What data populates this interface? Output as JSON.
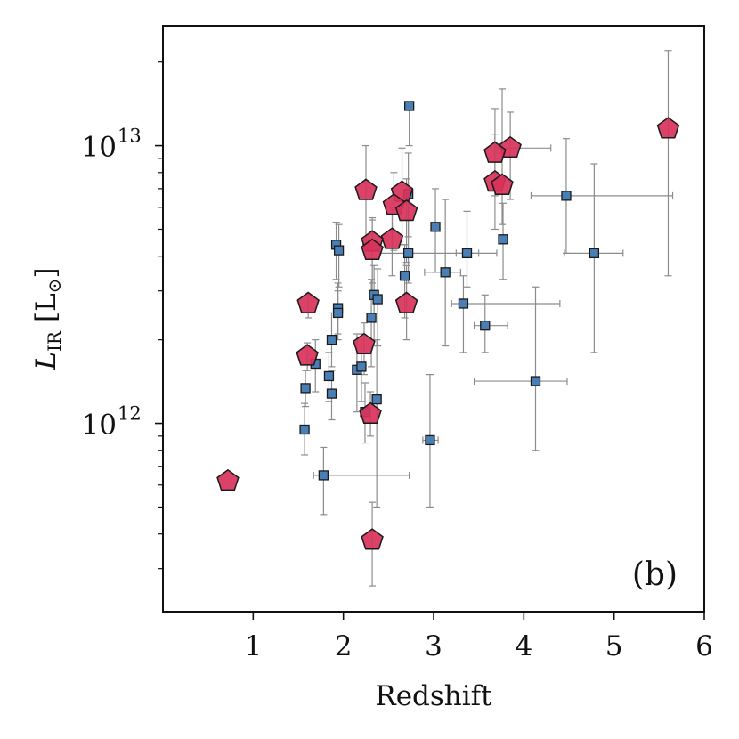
{
  "chart_data": {
    "type": "scatter",
    "title": "",
    "xlabel": "Redshift",
    "ylabel": {
      "main": "L",
      "sub": "IR",
      "unit": "[L",
      "unit_sub": "⊙",
      "unit_close": "]"
    },
    "xlim": [
      0,
      6
    ],
    "ylim": [
      210000000000.0,
      27000000000000.0
    ],
    "yscale": "log",
    "x_ticks": [
      1,
      2,
      3,
      4,
      5,
      6
    ],
    "x_tick_labels": [
      "1",
      "2",
      "3",
      "4",
      "5",
      "6"
    ],
    "y_major_ticks": [
      {
        "value": 1000000000000.0,
        "base": "10",
        "exp": "12"
      },
      {
        "value": 10000000000000.0,
        "base": "10",
        "exp": "13"
      }
    ],
    "y_minor_ticks": [
      300000000000.0,
      400000000000.0,
      500000000000.0,
      600000000000.0,
      700000000000.0,
      800000000000.0,
      900000000000.0,
      2000000000000.0,
      3000000000000.0,
      4000000000000.0,
      5000000000000.0,
      6000000000000.0,
      7000000000000.0,
      8000000000000.0,
      9000000000000.0,
      20000000000000.0
    ],
    "annotation": "(b)",
    "annotation_position": "bottom-right",
    "grid": false,
    "colors": {
      "square": "#4a7fb5",
      "pentagon": "#d8325a",
      "errorbar": "#8c8c8c",
      "edge": "#1a1a1a"
    },
    "series": [
      {
        "name": "squares",
        "marker": "square",
        "points": [
          {
            "x": 2.73,
            "y": 13900000000000.0,
            "ylo": 10000000000000.0,
            "yhi": 13900000000000.0
          },
          {
            "x": 2.72,
            "y": 6700000000000.0,
            "ylo": 4700000000000.0,
            "yhi": 9400000000000.0
          },
          {
            "x": 3.02,
            "y": 5100000000000.0,
            "ylo": 3500000000000.0,
            "yhi": 7000000000000.0
          },
          {
            "x": 1.92,
            "y": 4400000000000.0,
            "ylo": 3300000000000.0,
            "yhi": 5300000000000.0
          },
          {
            "x": 1.95,
            "y": 4200000000000.0,
            "ylo": 3100000000000.0,
            "yhi": 5200000000000.0
          },
          {
            "x": 2.72,
            "y": 4100000000000.0,
            "ylo": 3200000000000.0,
            "yhi": 6200000000000.0,
            "xlo": 2.4,
            "xhi": 3.7
          },
          {
            "x": 3.37,
            "y": 4100000000000.0,
            "ylo": 3100000000000.0,
            "yhi": 5800000000000.0,
            "xlo": 3.25,
            "xhi": 3.5
          },
          {
            "x": 3.77,
            "y": 4600000000000.0,
            "ylo": 3300000000000.0,
            "yhi": 6200000000000.0
          },
          {
            "x": 4.47,
            "y": 6600000000000.0,
            "ylo": 4100000000000.0,
            "yhi": 10600000000000.0,
            "xlo": 4.08,
            "xhi": 5.65
          },
          {
            "x": 4.78,
            "y": 4100000000000.0,
            "ylo": 1800000000000.0,
            "yhi": 8600000000000.0,
            "xlo": 4.45,
            "xhi": 5.1
          },
          {
            "x": 3.13,
            "y": 3500000000000.0,
            "ylo": 1900000000000.0,
            "yhi": 6400000000000.0,
            "xlo": 2.9,
            "xhi": 3.3
          },
          {
            "x": 2.68,
            "y": 3400000000000.0,
            "ylo": 2400000000000.0,
            "yhi": 4400000000000.0
          },
          {
            "x": 2.34,
            "y": 2900000000000.0,
            "ylo": 2000000000000.0,
            "yhi": 3700000000000.0
          },
          {
            "x": 2.38,
            "y": 2800000000000.0,
            "ylo": 1900000000000.0,
            "yhi": 3600000000000.0
          },
          {
            "x": 3.33,
            "y": 2700000000000.0,
            "ylo": 1800000000000.0,
            "yhi": 3400000000000.0,
            "xlo": 3.2,
            "xhi": 4.4
          },
          {
            "x": 1.94,
            "y": 2600000000000.0,
            "ylo": 2100000000000.0,
            "yhi": 3200000000000.0
          },
          {
            "x": 1.94,
            "y": 2500000000000.0,
            "ylo": 2000000000000.0,
            "yhi": 3000000000000.0
          },
          {
            "x": 2.31,
            "y": 2400000000000.0,
            "ylo": 1600000000000.0,
            "yhi": 3300000000000.0
          },
          {
            "x": 3.57,
            "y": 2250000000000.0,
            "ylo": 1800000000000.0,
            "yhi": 2900000000000.0,
            "xlo": 3.45,
            "xhi": 3.82
          },
          {
            "x": 1.87,
            "y": 2000000000000.0,
            "ylo": 1600000000000.0,
            "yhi": 2500000000000.0
          },
          {
            "x": 1.58,
            "y": 1340000000000.0,
            "ylo": 1150000000000.0,
            "yhi": 1550000000000.0
          },
          {
            "x": 1.69,
            "y": 1640000000000.0,
            "ylo": 1300000000000.0,
            "yhi": 2000000000000.0
          },
          {
            "x": 1.84,
            "y": 1480000000000.0,
            "ylo": 1200000000000.0,
            "yhi": 1800000000000.0
          },
          {
            "x": 2.15,
            "y": 1560000000000.0,
            "ylo": 1100000000000.0,
            "yhi": 2100000000000.0
          },
          {
            "x": 2.2,
            "y": 1600000000000.0,
            "ylo": 1200000000000.0,
            "yhi": 2100000000000.0
          },
          {
            "x": 1.87,
            "y": 1280000000000.0,
            "ylo": 1030000000000.0,
            "yhi": 1550000000000.0
          },
          {
            "x": 2.37,
            "y": 1220000000000.0,
            "ylo": 500000000000.0,
            "yhi": 2000000000000.0
          },
          {
            "x": 2.24,
            "y": 1100000000000.0,
            "ylo": 850000000000.0,
            "yhi": 1400000000000.0
          },
          {
            "x": 1.57,
            "y": 950000000000.0,
            "ylo": 770000000000.0,
            "yhi": 1180000000000.0
          },
          {
            "x": 2.96,
            "y": 870000000000.0,
            "ylo": 500000000000.0,
            "yhi": 1500000000000.0,
            "xlo": 2.88,
            "xhi": 3.05
          },
          {
            "x": 4.13,
            "y": 1420000000000.0,
            "ylo": 800000000000.0,
            "yhi": 3100000000000.0,
            "xlo": 3.45,
            "xhi": 4.48
          },
          {
            "x": 1.78,
            "y": 650000000000.0,
            "ylo": 470000000000.0,
            "yhi": 820000000000.0,
            "xlo": 1.67,
            "xhi": 2.73
          }
        ]
      },
      {
        "name": "pentagons",
        "marker": "pentagon",
        "points": [
          {
            "x": 5.6,
            "y": 11500000000000.0,
            "ylo": 3400000000000.0,
            "yhi": 22000000000000.0
          },
          {
            "x": 3.85,
            "y": 9800000000000.0,
            "ylo": 6400000000000.0,
            "yhi": 13200000000000.0,
            "xlo": 3.7,
            "xhi": 4.3
          },
          {
            "x": 3.68,
            "y": 9400000000000.0,
            "ylo": 6600000000000.0,
            "yhi": 13600000000000.0
          },
          {
            "x": 3.68,
            "y": 7400000000000.0,
            "ylo": 5000000000000.0,
            "yhi": 11000000000000.0
          },
          {
            "x": 3.76,
            "y": 7200000000000.0,
            "ylo": 5200000000000.0,
            "yhi": 16000000000000.0
          },
          {
            "x": 2.25,
            "y": 6900000000000.0,
            "ylo": 4400000000000.0,
            "yhi": 10000000000000.0
          },
          {
            "x": 2.65,
            "y": 6800000000000.0,
            "ylo": 4400000000000.0,
            "yhi": 9800000000000.0
          },
          {
            "x": 2.56,
            "y": 6100000000000.0,
            "ylo": 4200000000000.0,
            "yhi": 8000000000000.0
          },
          {
            "x": 2.7,
            "y": 5800000000000.0,
            "ylo": 3800000000000.0,
            "yhi": 7600000000000.0
          },
          {
            "x": 2.54,
            "y": 4600000000000.0,
            "ylo": 3400000000000.0,
            "yhi": 6000000000000.0
          },
          {
            "x": 2.32,
            "y": 4500000000000.0,
            "ylo": 3200000000000.0,
            "yhi": 5500000000000.0
          },
          {
            "x": 2.32,
            "y": 4200000000000.0,
            "ylo": 3000000000000.0,
            "yhi": 5400000000000.0
          },
          {
            "x": 1.61,
            "y": 2700000000000.0,
            "ylo": 2400000000000.0,
            "yhi": 2900000000000.0
          },
          {
            "x": 2.7,
            "y": 2700000000000.0,
            "ylo": 2000000000000.0,
            "yhi": 3700000000000.0
          },
          {
            "x": 2.23,
            "y": 1920000000000.0,
            "ylo": 1500000000000.0,
            "yhi": 2300000000000.0
          },
          {
            "x": 1.6,
            "y": 1750000000000.0,
            "ylo": 1550000000000.0,
            "yhi": 1950000000000.0
          },
          {
            "x": 2.3,
            "y": 1080000000000.0,
            "ylo": 900000000000.0,
            "yhi": 1300000000000.0
          },
          {
            "x": 0.72,
            "y": 620000000000.0,
            "ylo": 620000000000.0,
            "yhi": 620000000000.0
          },
          {
            "x": 2.32,
            "y": 380000000000.0,
            "ylo": 260000000000.0,
            "yhi": 520000000000.0
          }
        ]
      }
    ]
  }
}
